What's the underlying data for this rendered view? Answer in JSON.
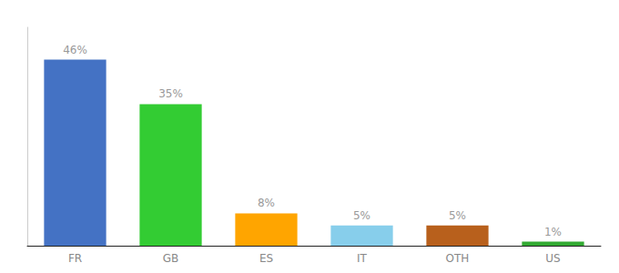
{
  "chart_data": {
    "type": "bar",
    "categories": [
      "FR",
      "GB",
      "ES",
      "IT",
      "OTH",
      "US"
    ],
    "values": [
      46,
      35,
      8,
      5,
      5,
      1
    ],
    "value_labels": [
      "46%",
      "35%",
      "8%",
      "5%",
      "5%",
      "1%"
    ],
    "colors": [
      "#4472C4",
      "#33CC33",
      "#FFA500",
      "#87CEEB",
      "#B8601C",
      "#33AA33"
    ],
    "ylim": [
      0,
      54
    ],
    "grid": false,
    "data_labels": true,
    "tick_labels": "x"
  }
}
